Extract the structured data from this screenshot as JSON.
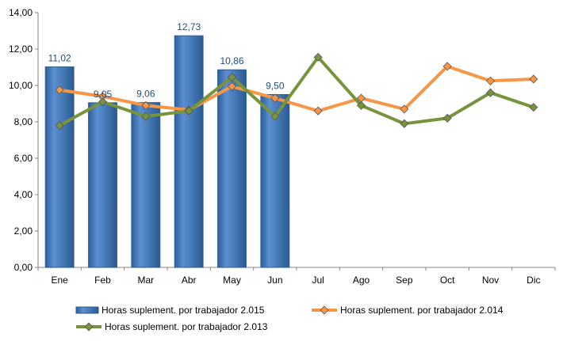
{
  "chart_data": {
    "type": "bar",
    "title": "",
    "xlabel": "",
    "ylabel": "",
    "ylim": [
      0,
      14
    ],
    "yticks": [
      "0,00",
      "2,00",
      "4,00",
      "6,00",
      "8,00",
      "10,00",
      "12,00",
      "14,00"
    ],
    "categories": [
      "Ene",
      "Feb",
      "Mar",
      "Abr",
      "May",
      "Jun",
      "Jul",
      "Ago",
      "Sep",
      "Oct",
      "Nov",
      "Dic"
    ],
    "grid": false,
    "legend_position": "bottom",
    "series": [
      {
        "name": "Horas suplement. por trabajador 2.015",
        "kind": "bar",
        "color": "#4a7ebb",
        "values": [
          11.02,
          9.05,
          9.06,
          12.73,
          10.86,
          9.5,
          null,
          null,
          null,
          null,
          null,
          null
        ],
        "labels": [
          "11,02",
          "9,05",
          "9,06",
          "12,73",
          "10,86",
          "9,50"
        ]
      },
      {
        "name": "Horas suplement. por trabajador 2.014",
        "kind": "line",
        "color": "#f79646",
        "values": [
          9.75,
          9.4,
          8.9,
          8.65,
          9.95,
          9.3,
          8.6,
          9.3,
          8.7,
          11.05,
          10.25,
          10.35
        ]
      },
      {
        "name": "Horas suplement. por trabajador 2.013",
        "kind": "line",
        "color": "#77933c",
        "values": [
          7.8,
          9.1,
          8.3,
          8.6,
          10.45,
          8.3,
          11.55,
          8.9,
          7.9,
          8.2,
          9.6,
          8.8
        ]
      }
    ]
  }
}
